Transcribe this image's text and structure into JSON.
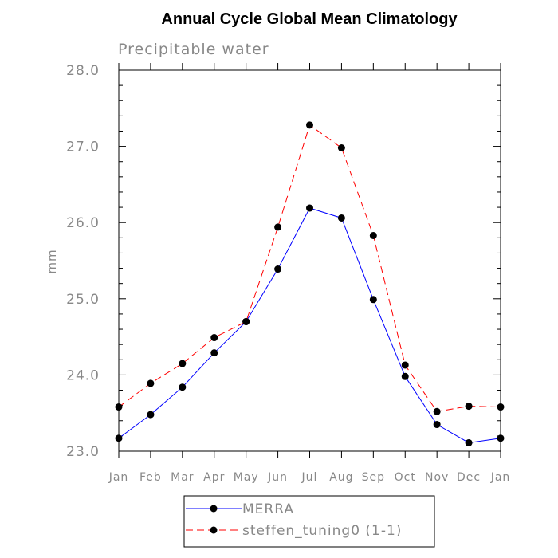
{
  "chart_data": {
    "type": "line",
    "title": "Annual Cycle Global Mean Climatology",
    "subtitle": "Precipitable water",
    "ylabel": "mm",
    "xlabel": "",
    "categories": [
      "Jan",
      "Feb",
      "Mar",
      "Apr",
      "May",
      "Jun",
      "Jul",
      "Aug",
      "Sep",
      "Oct",
      "Nov",
      "Dec",
      "Jan"
    ],
    "ylim": [
      23.0,
      28.0
    ],
    "yticks": [
      "23.0",
      "24.0",
      "25.0",
      "26.0",
      "27.0",
      "28.0"
    ],
    "grid": false,
    "legend_position": "bottom",
    "series": [
      {
        "name": "MERRA",
        "color": "#0000ff",
        "line_style": "solid",
        "marker": "filled-circle",
        "values": [
          23.17,
          23.48,
          23.84,
          24.29,
          24.7,
          25.39,
          26.19,
          26.06,
          24.99,
          23.98,
          23.35,
          23.11,
          23.17
        ]
      },
      {
        "name": "steffen_tuning0 (1-1)",
        "color": "#ff0000",
        "line_style": "dashed",
        "marker": "filled-circle",
        "values": [
          23.58,
          23.89,
          24.15,
          24.49,
          24.7,
          25.94,
          27.28,
          26.98,
          25.83,
          24.13,
          23.52,
          23.59,
          23.58
        ]
      }
    ]
  }
}
